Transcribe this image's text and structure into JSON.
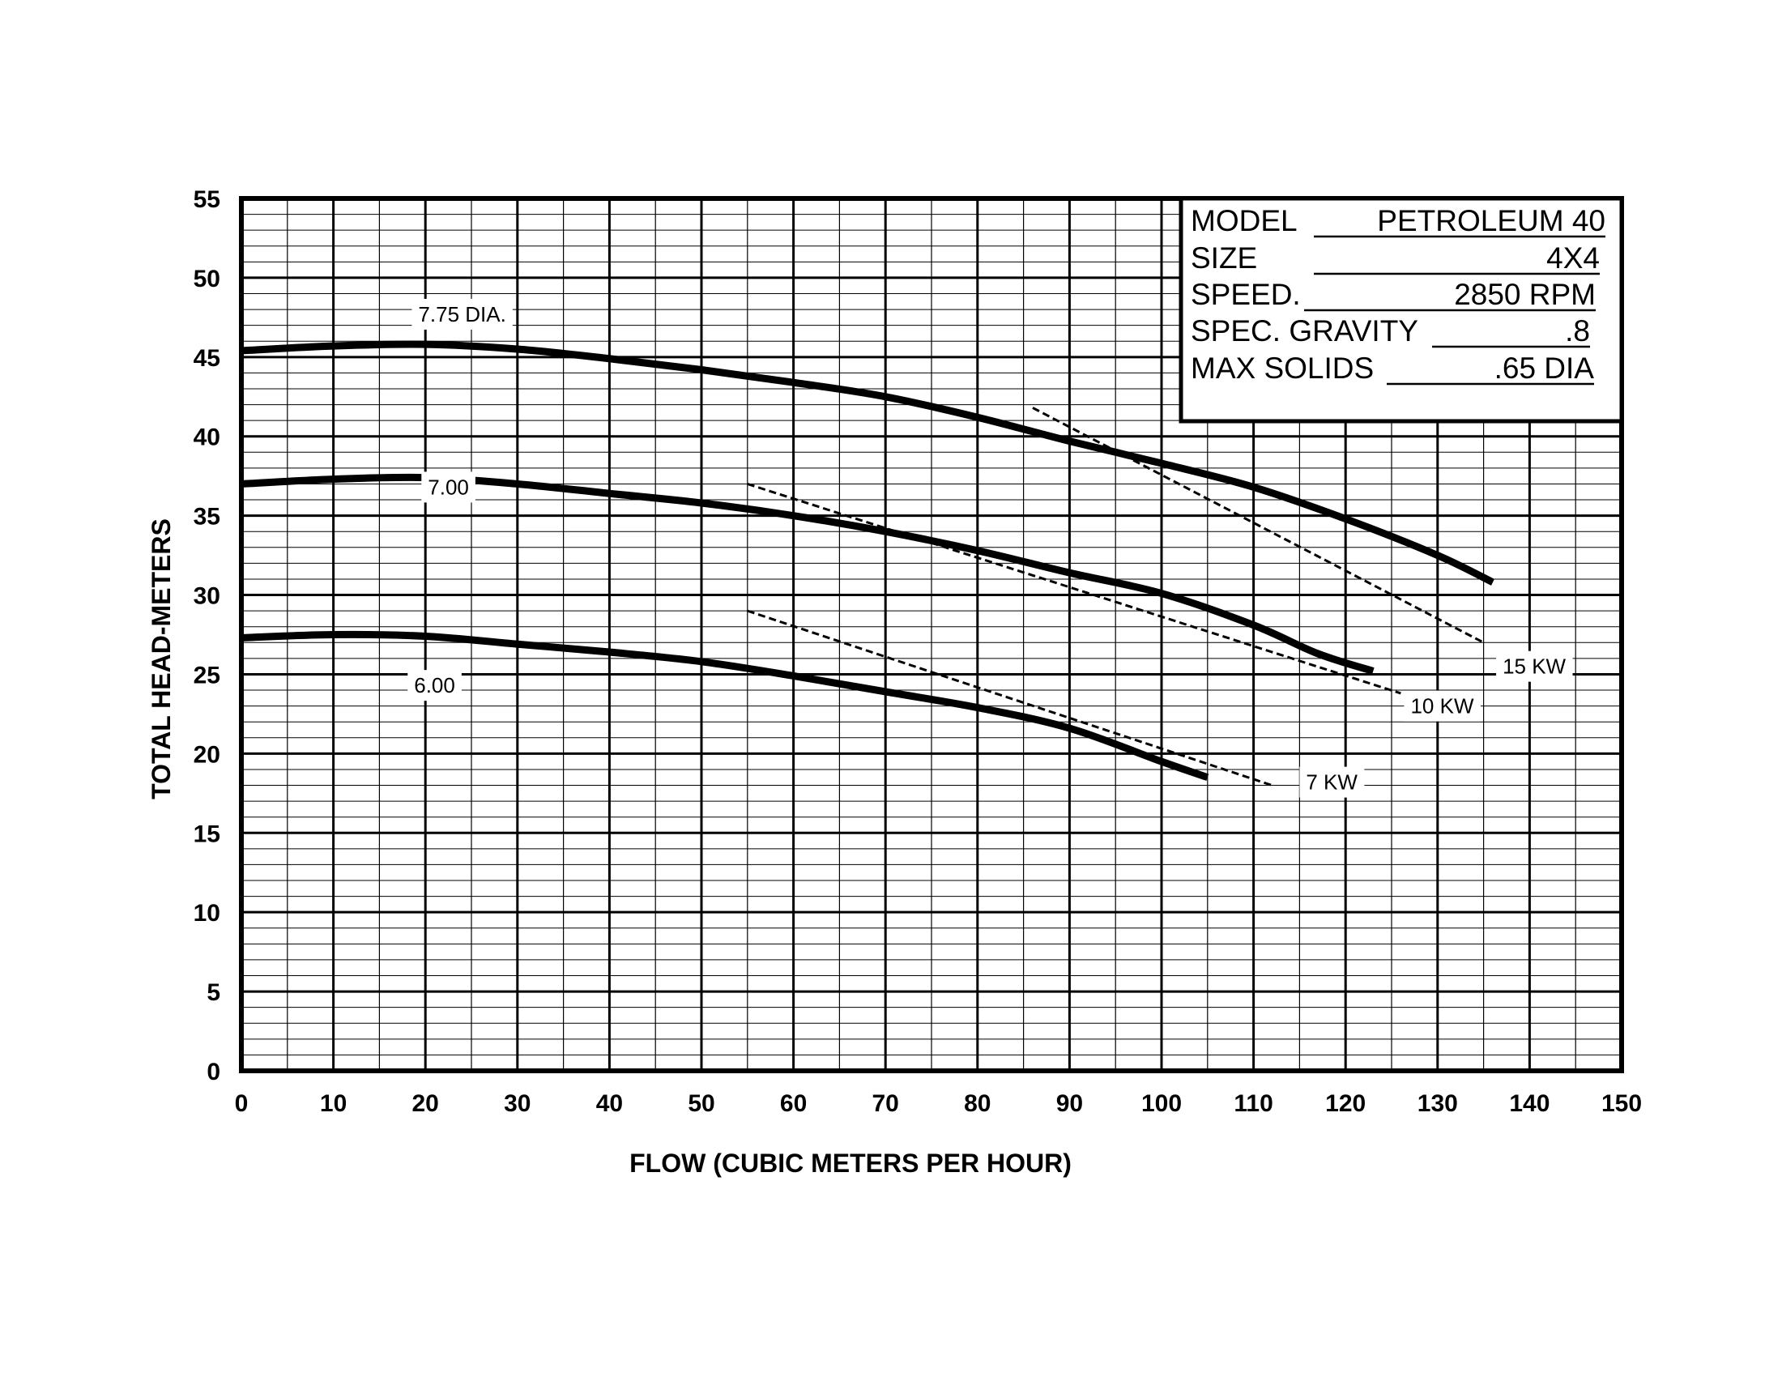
{
  "chart_data": {
    "type": "line",
    "xlabel": "FLOW (CUBIC METERS PER HOUR)",
    "ylabel": "TOTAL HEAD-METERS",
    "xlim": [
      0,
      150
    ],
    "ylim": [
      0,
      55
    ],
    "x_ticks": [
      "0",
      "10",
      "20",
      "30",
      "40",
      "50",
      "60",
      "70",
      "80",
      "90",
      "100",
      "110",
      "120",
      "130",
      "140",
      "150"
    ],
    "y_ticks": [
      "0",
      "5",
      "10",
      "15",
      "20",
      "25",
      "30",
      "35",
      "40",
      "45",
      "50",
      "55"
    ],
    "grid": true,
    "impeller_curves": [
      {
        "name": "7.75 DIA.",
        "label_at": [
          24,
          47.7
        ],
        "points": [
          [
            0,
            45.4
          ],
          [
            10,
            45.7
          ],
          [
            20,
            45.8
          ],
          [
            30,
            45.5
          ],
          [
            40,
            44.9
          ],
          [
            50,
            44.2
          ],
          [
            60,
            43.4
          ],
          [
            70,
            42.5
          ],
          [
            80,
            41.2
          ],
          [
            90,
            39.7
          ],
          [
            100,
            38.3
          ],
          [
            110,
            36.8
          ],
          [
            120,
            34.8
          ],
          [
            130,
            32.5
          ],
          [
            136,
            30.8
          ]
        ]
      },
      {
        "name": "7.00",
        "label_at": [
          22.5,
          36.8
        ],
        "points": [
          [
            0,
            37.0
          ],
          [
            10,
            37.3
          ],
          [
            20,
            37.4
          ],
          [
            30,
            37.0
          ],
          [
            40,
            36.4
          ],
          [
            50,
            35.8
          ],
          [
            60,
            35.0
          ],
          [
            70,
            34.0
          ],
          [
            80,
            32.8
          ],
          [
            90,
            31.4
          ],
          [
            100,
            30.1
          ],
          [
            110,
            28.1
          ],
          [
            117,
            26.3
          ],
          [
            123,
            25.2
          ]
        ]
      },
      {
        "name": "6.00",
        "label_at": [
          21,
          24.3
        ],
        "points": [
          [
            0,
            27.3
          ],
          [
            10,
            27.5
          ],
          [
            20,
            27.4
          ],
          [
            30,
            26.9
          ],
          [
            40,
            26.4
          ],
          [
            50,
            25.8
          ],
          [
            60,
            24.9
          ],
          [
            70,
            23.9
          ],
          [
            80,
            22.9
          ],
          [
            90,
            21.6
          ],
          [
            100,
            19.5
          ],
          [
            105,
            18.5
          ]
        ]
      }
    ],
    "power_lines": [
      {
        "name": "15 KW",
        "label_at": [
          140.5,
          25.5
        ],
        "points": [
          [
            86,
            41.8
          ],
          [
            135,
            27.0
          ]
        ]
      },
      {
        "name": "10 KW",
        "label_at": [
          130.5,
          23.0
        ],
        "points": [
          [
            55,
            37.0
          ],
          [
            126,
            23.8
          ]
        ]
      },
      {
        "name": "7 KW",
        "label_at": [
          118.5,
          18.2
        ],
        "points": [
          [
            55,
            29.0
          ],
          [
            112,
            18.0
          ]
        ]
      }
    ]
  },
  "info_box": {
    "rows": [
      {
        "label": "MODEL",
        "value": "PETROLEUM 40"
      },
      {
        "label": "SIZE",
        "value": "4X4"
      },
      {
        "label": "SPEED.",
        "value": "2850 RPM"
      },
      {
        "label": "SPEC. GRAVITY",
        "value": ".8"
      },
      {
        "label": "MAX SOLIDS",
        "value": ".65 DIA"
      }
    ]
  }
}
